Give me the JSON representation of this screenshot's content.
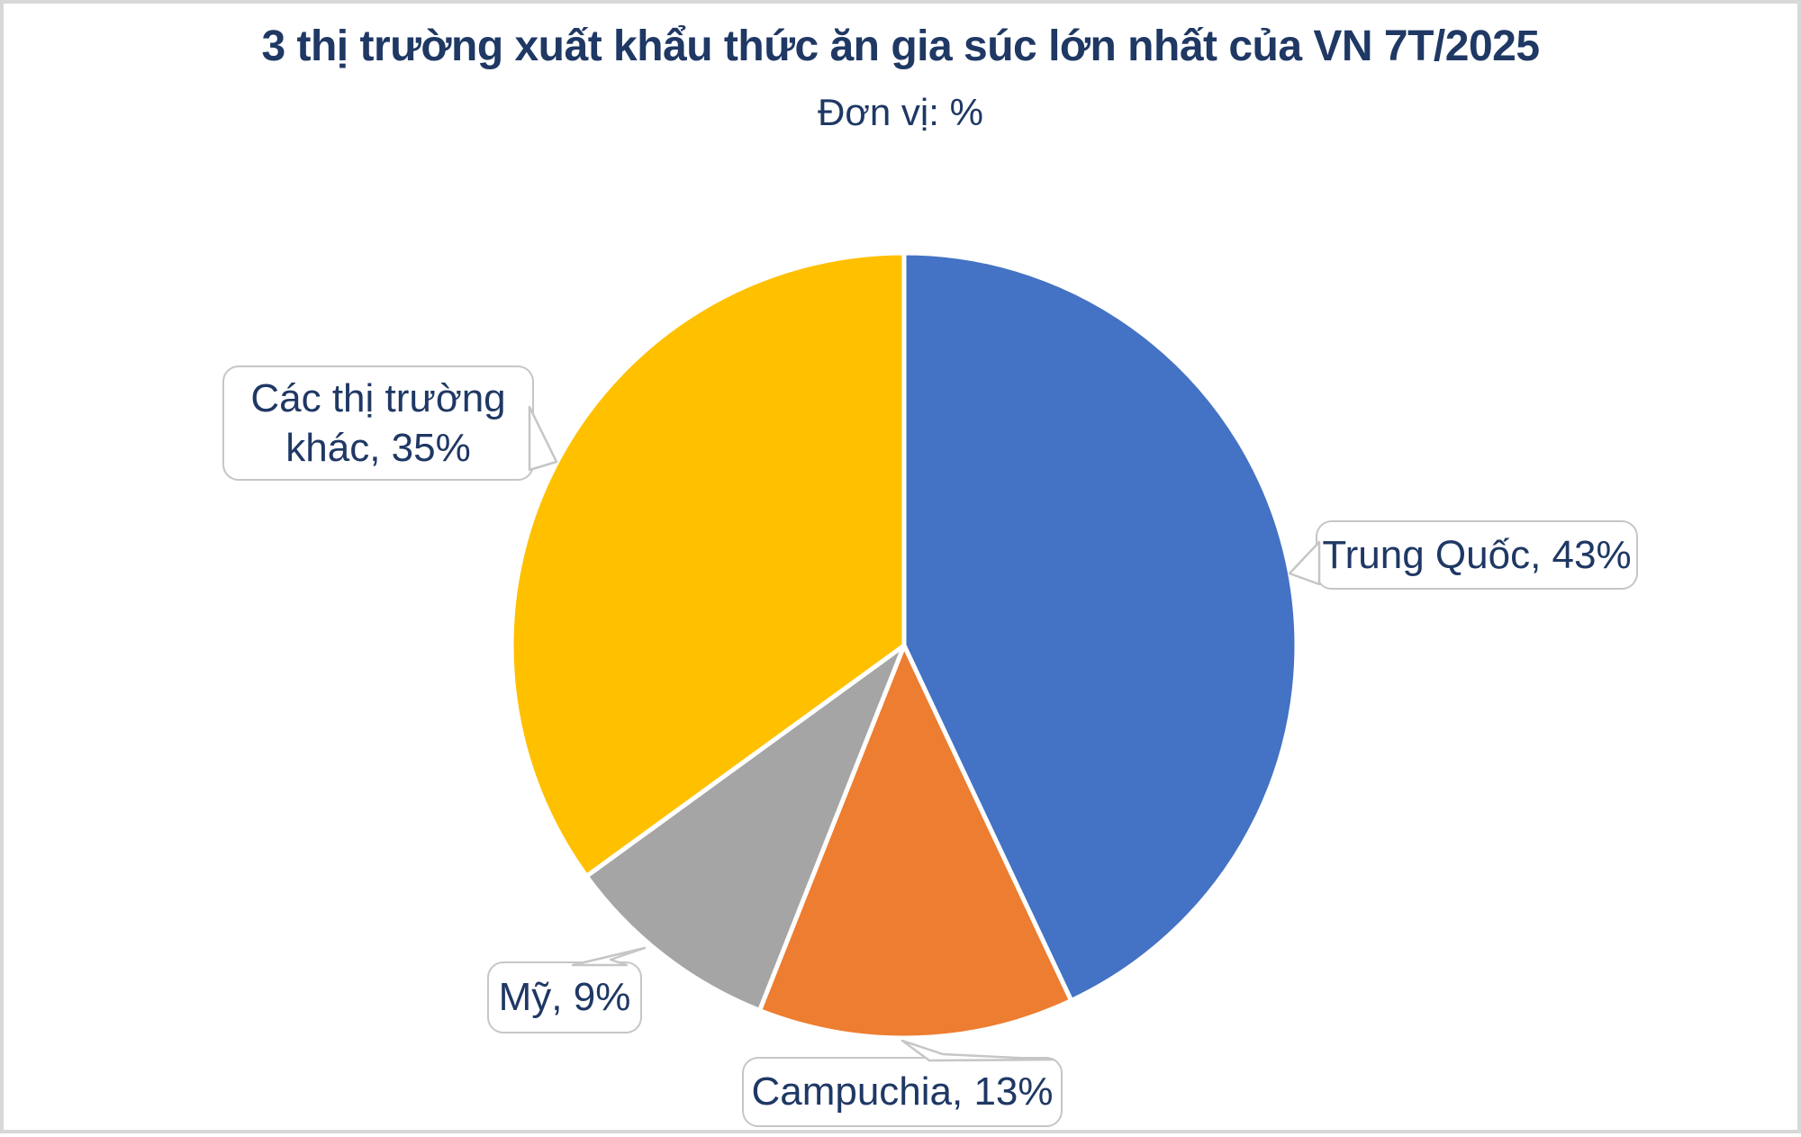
{
  "header": {
    "title": "3 thị trường xuất khẩu thức ăn gia súc lớn nhất của VN 7T/2025",
    "subtitle": "Đơn vị: %"
  },
  "chart_data": {
    "type": "pie",
    "title": "3 thị trường xuất khẩu thức ăn gia súc lớn nhất của VN 7T/2025",
    "unit_label": "Đơn vị: %",
    "unit": "%",
    "categories": [
      "Trung Quốc",
      "Campuchia",
      "Mỹ",
      "Các thị trường khác"
    ],
    "values": [
      43,
      13,
      9,
      35
    ],
    "colors": [
      "#4472C4",
      "#ED7D31",
      "#A5A5A5",
      "#FFC000"
    ],
    "slice_ids": [
      "trung-quoc",
      "campuchia",
      "my",
      "cac-thi-truong-khac"
    ],
    "data_labels": [
      "Trung Quốc, 43%",
      "Campuchia, 13%",
      "Mỹ, 9%",
      "Các thị trường khác, 35%"
    ],
    "start_position": "12-oclock",
    "direction": "clockwise",
    "legend": "none",
    "label_style": "white rounded callout boxes with gray leader pointers"
  },
  "style": {
    "title_color": "#1F3864",
    "label_color": "#1F3864",
    "callout_border_color": "#C6C6C6",
    "frame_border_color": "#D8D8D8",
    "slice_stroke_color": "#FFFFFF",
    "background": "#FFFFFF"
  }
}
